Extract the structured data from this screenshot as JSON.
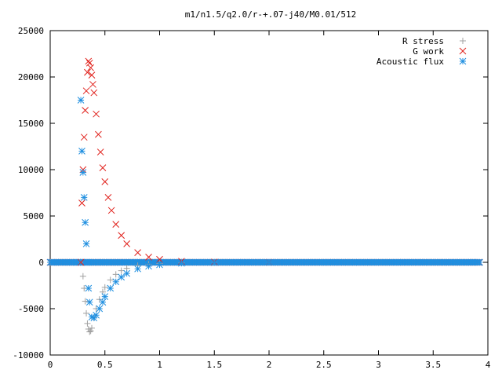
{
  "chart_data": {
    "type": "scatter",
    "title": "m1/n1.5/q2.0/r-+.07-j40/M0.01/512",
    "xlim": [
      0,
      4
    ],
    "ylim": [
      -10000,
      25000
    ],
    "x_ticks": [
      0,
      0.5,
      1,
      1.5,
      2,
      2.5,
      3,
      3.5,
      4
    ],
    "x_tick_labels": [
      "0",
      "0.5",
      "1",
      "1.5",
      "2",
      "2.5",
      "3",
      "3.5",
      "4"
    ],
    "y_ticks": [
      -10000,
      -5000,
      0,
      5000,
      10000,
      15000,
      20000,
      25000
    ],
    "y_tick_labels": [
      "-10000",
      "-5000",
      "0",
      "5000",
      "10000",
      "15000",
      "20000",
      "25000"
    ],
    "grid": false,
    "legend_position": "top-right",
    "series": [
      {
        "name": "R stress",
        "marker": "plus",
        "color": "#a0a0a0",
        "x": [
          0.27,
          0.3,
          0.31,
          0.32,
          0.33,
          0.34,
          0.35,
          0.36,
          0.37,
          0.38,
          0.4,
          0.42,
          0.45,
          0.48,
          0.5,
          0.55,
          0.6,
          0.65,
          0.7,
          0.8,
          0.9,
          1.0,
          1.2,
          1.5,
          2.0
        ],
        "y": [
          0,
          -1500,
          -2800,
          -4200,
          -5500,
          -6600,
          -7200,
          -7500,
          -7400,
          -7100,
          -6000,
          -5000,
          -4000,
          -3200,
          -2700,
          -1900,
          -1300,
          -900,
          -650,
          -350,
          -200,
          -120,
          -50,
          -20,
          -5
        ]
      },
      {
        "name": "G work",
        "marker": "cross",
        "color": "#e0201b",
        "x": [
          0.28,
          0.29,
          0.3,
          0.31,
          0.32,
          0.33,
          0.34,
          0.35,
          0.36,
          0.37,
          0.38,
          0.39,
          0.4,
          0.42,
          0.44,
          0.46,
          0.48,
          0.5,
          0.53,
          0.56,
          0.6,
          0.65,
          0.7,
          0.8,
          0.9,
          1.0,
          1.2,
          1.5,
          2.0
        ],
        "y": [
          0,
          6400,
          10000,
          13500,
          16400,
          18500,
          20500,
          21700,
          21500,
          21000,
          20200,
          19200,
          18300,
          16000,
          13800,
          11900,
          10200,
          8700,
          7000,
          5600,
          4100,
          2900,
          2000,
          1050,
          560,
          320,
          110,
          30,
          5
        ]
      },
      {
        "name": "Acoustic flux",
        "marker": "star",
        "color": "#1f8fe0",
        "x": [
          0.25,
          0.28,
          0.29,
          0.3,
          0.31,
          0.32,
          0.33,
          0.34,
          0.35,
          0.36,
          0.38,
          0.4,
          0.42,
          0.45,
          0.48,
          0.5,
          0.55,
          0.6,
          0.65,
          0.7,
          0.8,
          0.9,
          1.0,
          1.2,
          1.5,
          2.0
        ],
        "y": [
          0,
          17500,
          12000,
          9700,
          7000,
          4300,
          2000,
          0,
          -2800,
          -4300,
          -5900,
          -6000,
          -5700,
          -5000,
          -4300,
          -3700,
          -2800,
          -2100,
          -1600,
          -1200,
          -700,
          -420,
          -260,
          -100,
          -30,
          -5
        ]
      }
    ],
    "baseline_range": [
      0,
      3.93
    ]
  }
}
